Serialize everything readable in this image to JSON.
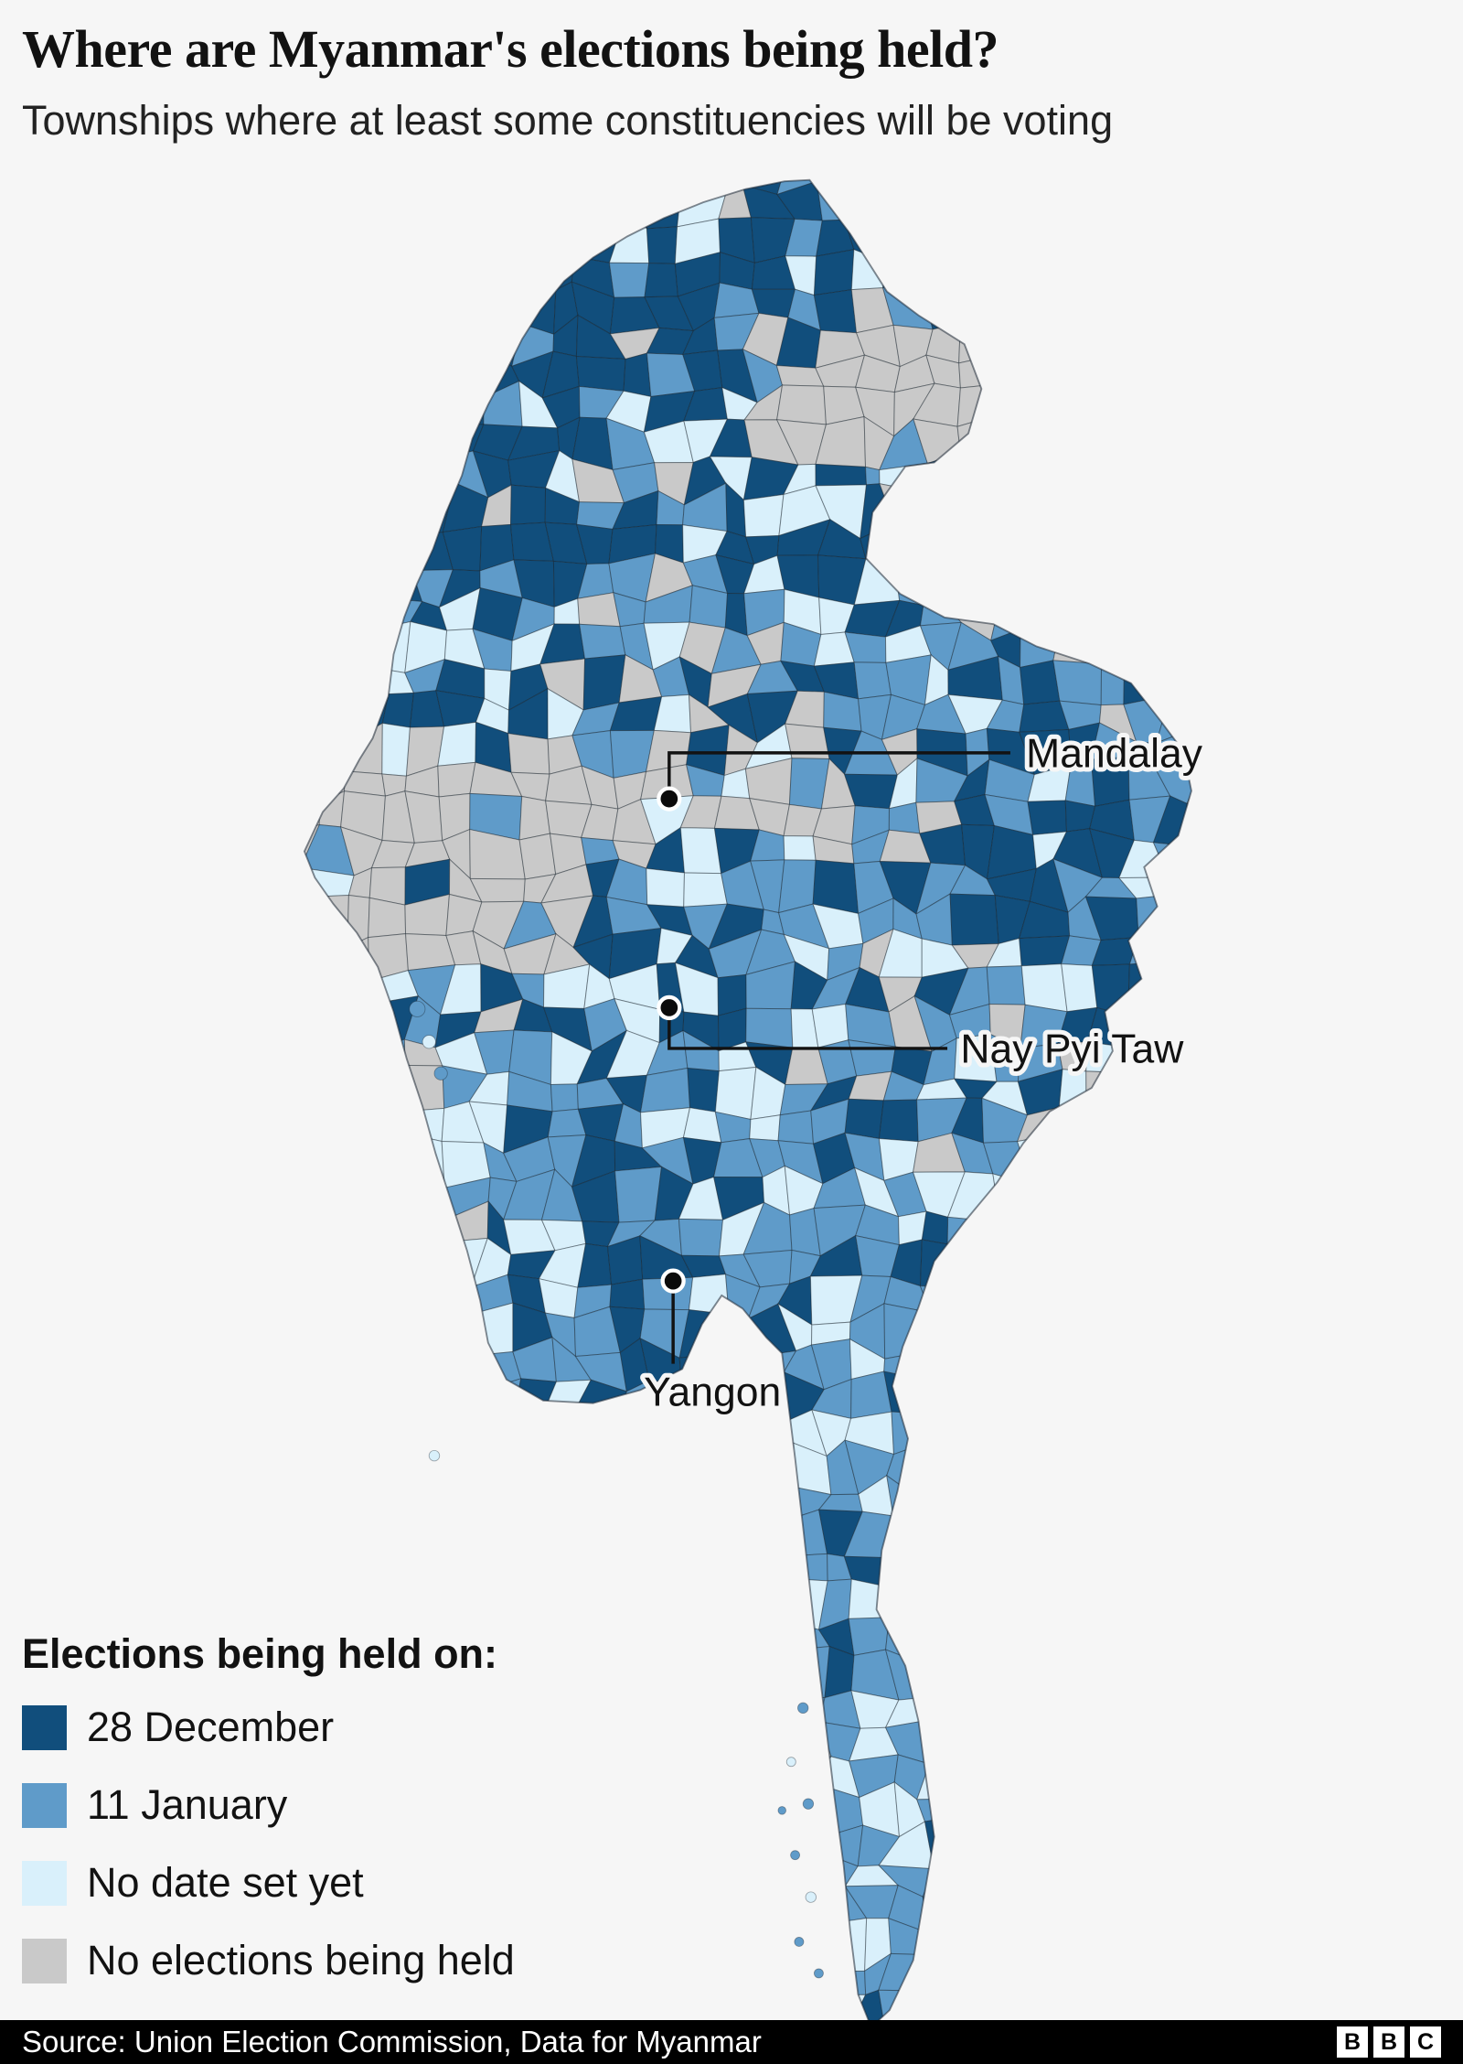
{
  "header": {
    "title": "Where are Myanmar's elections being held?",
    "subtitle": "Townships where at least some constituencies will be voting"
  },
  "map": {
    "cities": [
      {
        "name": "Mandalay"
      },
      {
        "name": "Nay Pyi Taw"
      },
      {
        "name": "Yangon"
      }
    ]
  },
  "legend": {
    "title": "Elections being held on:",
    "items": [
      {
        "label": "28 December",
        "color": "#114E7C"
      },
      {
        "label": "11 January",
        "color": "#5F9BC9"
      },
      {
        "label": "No date set yet",
        "color": "#D9F0FB"
      },
      {
        "label": "No elections being held",
        "color": "#C9C9C9"
      }
    ]
  },
  "footer": {
    "source": "Source: Union Election Commission, Data for Myanmar",
    "logo": [
      "B",
      "B",
      "C"
    ]
  },
  "colors": {
    "background": "#F6F6F6"
  }
}
